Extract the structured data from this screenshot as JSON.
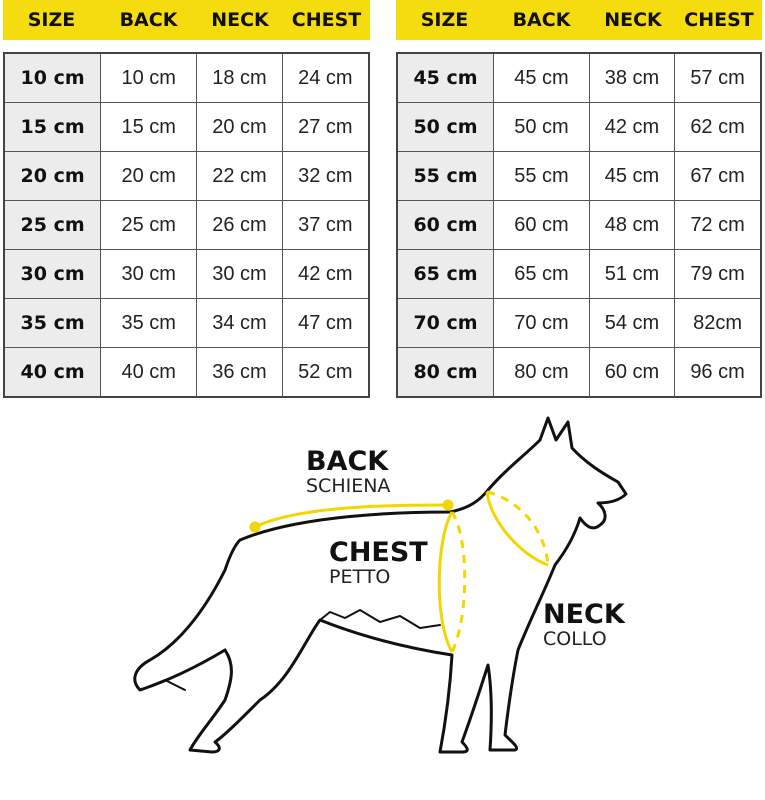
{
  "headers": [
    "SIZE",
    "BACK",
    "NECK",
    "CHEST"
  ],
  "left_table": [
    [
      "10 cm",
      "10 cm",
      "18 cm",
      "24 cm"
    ],
    [
      "15 cm",
      "15 cm",
      "20 cm",
      "27 cm"
    ],
    [
      "20 cm",
      "20 cm",
      "22 cm",
      "32 cm"
    ],
    [
      "25 cm",
      "25 cm",
      "26 cm",
      "37 cm"
    ],
    [
      "30 cm",
      "30 cm",
      "30 cm",
      "42 cm"
    ],
    [
      "35 cm",
      "35 cm",
      "34 cm",
      "47 cm"
    ],
    [
      "40 cm",
      "40 cm",
      "36 cm",
      "52 cm"
    ]
  ],
  "right_table": [
    [
      "45 cm",
      "45 cm",
      "38 cm",
      "57 cm"
    ],
    [
      "50 cm",
      "50 cm",
      "42 cm",
      "62 cm"
    ],
    [
      "55 cm",
      "55 cm",
      "45 cm",
      "67 cm"
    ],
    [
      "60 cm",
      "60 cm",
      "48 cm",
      "72 cm"
    ],
    [
      "65 cm",
      "65 cm",
      "51 cm",
      "79 cm"
    ],
    [
      "70 cm",
      "70 cm",
      "54 cm",
      "82cm"
    ],
    [
      "80 cm",
      "80 cm",
      "60 cm",
      "96 cm"
    ]
  ],
  "diagram": {
    "back": {
      "label": "BACK",
      "sub": "SCHIENA"
    },
    "chest": {
      "label": "CHEST",
      "sub": "PETTO"
    },
    "neck": {
      "label": "NECK",
      "sub": "COLLO"
    }
  },
  "colors": {
    "accent": "#f5dc0f",
    "size_cell": "#ececec",
    "measure_line": "#f2d600"
  }
}
